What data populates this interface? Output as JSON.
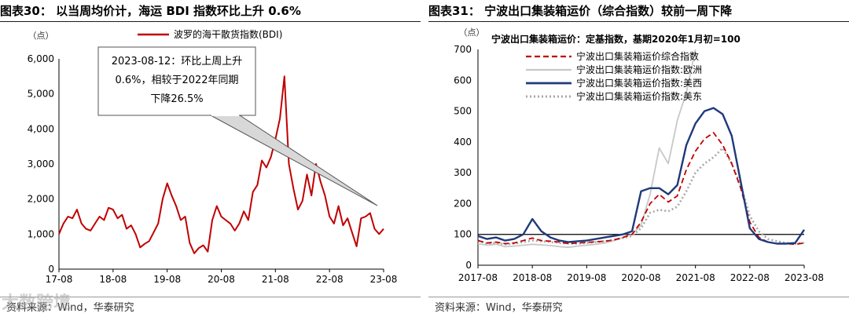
{
  "charts": [
    {
      "figure_label": "图表30：",
      "figure_title": "以当周均价计，海运 BDI 指数环比上升 0.6%",
      "unit": "（点）",
      "source": "资料来源：Wind，华泰研究",
      "annotation": {
        "lines": [
          "2023-08-12：环比上周上升",
          "0.6%，相较于2022年同期",
          "下降26.5%"
        ]
      }
    },
    {
      "figure_label": "图表31：",
      "figure_title": "宁波出口集装箱运价（综合指数）较前一周下降",
      "unit": "（点）",
      "subtitle": "宁波出口集装箱运价：定基指数，基期2020年1月初=100",
      "source": "资料来源：Wind，华泰研究"
    }
  ],
  "watermark": "大数跨境",
  "colors": {
    "bdi": "#c00000",
    "composite": "#c00000",
    "europe": "#c8c8c8",
    "uswest": "#1f3a7a",
    "useast": "#a8a8a8"
  },
  "chart_data": [
    {
      "type": "line",
      "title": "",
      "xlabel": "",
      "ylabel": "（点）",
      "ylim": [
        0,
        6000
      ],
      "yticks": [
        "0",
        "1,000",
        "2,000",
        "3,000",
        "4,000",
        "5,000",
        "6,000"
      ],
      "xticks": [
        "17-08",
        "18-08",
        "19-08",
        "20-08",
        "21-08",
        "22-08",
        "23-08"
      ],
      "legend_position": "top",
      "series": [
        {
          "name": "波罗的海干散货指数(BDI)",
          "x": [
            "2017-08",
            "2017-09",
            "2017-10",
            "2017-11",
            "2017-12",
            "2018-01",
            "2018-02",
            "2018-03",
            "2018-04",
            "2018-05",
            "2018-06",
            "2018-07",
            "2018-08",
            "2018-09",
            "2018-10",
            "2018-11",
            "2018-12",
            "2019-01",
            "2019-02",
            "2019-03",
            "2019-04",
            "2019-05",
            "2019-06",
            "2019-07",
            "2019-08",
            "2019-09",
            "2019-10",
            "2019-11",
            "2019-12",
            "2020-01",
            "2020-02",
            "2020-03",
            "2020-04",
            "2020-05",
            "2020-06",
            "2020-07",
            "2020-08",
            "2020-09",
            "2020-10",
            "2020-11",
            "2020-12",
            "2021-01",
            "2021-02",
            "2021-03",
            "2021-04",
            "2021-05",
            "2021-06",
            "2021-07",
            "2021-08",
            "2021-09",
            "2021-10",
            "2021-11",
            "2021-12",
            "2022-01",
            "2022-02",
            "2022-03",
            "2022-04",
            "2022-05",
            "2022-06",
            "2022-07",
            "2022-08",
            "2022-09",
            "2022-10",
            "2022-11",
            "2022-12",
            "2023-01",
            "2023-02",
            "2023-03",
            "2023-04",
            "2023-05",
            "2023-06",
            "2023-07",
            "2023-08"
          ],
          "values": [
            1000,
            1300,
            1500,
            1450,
            1700,
            1300,
            1150,
            1100,
            1300,
            1500,
            1400,
            1750,
            1700,
            1450,
            1550,
            1150,
            1250,
            1000,
            620,
            720,
            800,
            1050,
            1300,
            2000,
            2450,
            2100,
            1800,
            1400,
            1500,
            750,
            450,
            600,
            680,
            500,
            1400,
            1800,
            1500,
            1400,
            1300,
            1100,
            1300,
            1650,
            1400,
            2200,
            2400,
            3100,
            2900,
            3200,
            3700,
            4300,
            5500,
            3000,
            2300,
            1700,
            1950,
            2700,
            2100,
            3000,
            2500,
            2100,
            1500,
            1300,
            1800,
            1250,
            1450,
            1050,
            650,
            1450,
            1500,
            1600,
            1150,
            1000,
            1150
          ]
        }
      ]
    },
    {
      "type": "line",
      "title": "宁波出口集装箱运价：定基指数，基期2020年1月初=100",
      "xlabel": "",
      "ylabel": "（点）",
      "ylim": [
        0,
        700
      ],
      "yticks": [
        "0",
        "100",
        "200",
        "300",
        "400",
        "500",
        "600",
        "700"
      ],
      "xticks": [
        "2017-08",
        "2018-08",
        "2019-08",
        "2020-08",
        "2021-08",
        "2022-08",
        "2023-08"
      ],
      "legend_position": "top-left",
      "series": [
        {
          "name": "宁波出口集装箱运价综合指数",
          "x": [
            "2017-08",
            "2017-10",
            "2017-12",
            "2018-02",
            "2018-04",
            "2018-06",
            "2018-08",
            "2018-10",
            "2018-12",
            "2019-02",
            "2019-04",
            "2019-06",
            "2019-08",
            "2019-10",
            "2019-12",
            "2020-02",
            "2020-04",
            "2020-06",
            "2020-08",
            "2020-10",
            "2020-12",
            "2021-02",
            "2021-04",
            "2021-06",
            "2021-08",
            "2021-10",
            "2021-12",
            "2022-02",
            "2022-04",
            "2022-06",
            "2022-08",
            "2022-10",
            "2022-12",
            "2023-02",
            "2023-04",
            "2023-06",
            "2023-08"
          ],
          "values": [
            80,
            72,
            75,
            70,
            72,
            80,
            88,
            80,
            78,
            75,
            70,
            72,
            74,
            76,
            78,
            82,
            90,
            100,
            140,
            200,
            230,
            205,
            225,
            310,
            370,
            410,
            430,
            390,
            330,
            250,
            140,
            90,
            75,
            70,
            70,
            68,
            72
          ]
        },
        {
          "name": "宁波出口集装箱运价指数:欧洲",
          "x": [
            "2017-08",
            "2017-10",
            "2017-12",
            "2018-02",
            "2018-04",
            "2018-06",
            "2018-08",
            "2018-10",
            "2018-12",
            "2019-02",
            "2019-04",
            "2019-06",
            "2019-08",
            "2019-10",
            "2019-12",
            "2020-02",
            "2020-04",
            "2020-06",
            "2020-08",
            "2020-10",
            "2020-12",
            "2021-02",
            "2021-04",
            "2021-06",
            "2021-08"
          ],
          "values": [
            70,
            65,
            68,
            60,
            62,
            65,
            68,
            66,
            64,
            60,
            58,
            62,
            65,
            68,
            72,
            80,
            90,
            100,
            130,
            230,
            380,
            330,
            470,
            560,
            700
          ]
        },
        {
          "name": "宁波出口集装箱运价指数:美西",
          "x": [
            "2017-08",
            "2017-10",
            "2017-12",
            "2018-02",
            "2018-04",
            "2018-06",
            "2018-08",
            "2018-10",
            "2018-12",
            "2019-02",
            "2019-04",
            "2019-06",
            "2019-08",
            "2019-10",
            "2019-12",
            "2020-02",
            "2020-04",
            "2020-06",
            "2020-08",
            "2020-10",
            "2020-12",
            "2021-02",
            "2021-04",
            "2021-06",
            "2021-08",
            "2021-10",
            "2021-12",
            "2022-02",
            "2022-04",
            "2022-06",
            "2022-08",
            "2022-10",
            "2022-12",
            "2023-02",
            "2023-04",
            "2023-06",
            "2023-08"
          ],
          "values": [
            95,
            85,
            90,
            80,
            85,
            100,
            150,
            110,
            90,
            80,
            75,
            78,
            80,
            85,
            90,
            95,
            100,
            110,
            240,
            250,
            250,
            230,
            260,
            390,
            460,
            500,
            510,
            490,
            420,
            270,
            120,
            85,
            75,
            70,
            70,
            72,
            115
          ]
        },
        {
          "name": "宁波出口集装箱运价指数:美东",
          "x": [
            "2017-08",
            "2017-10",
            "2017-12",
            "2018-02",
            "2018-04",
            "2018-06",
            "2018-08",
            "2018-10",
            "2018-12",
            "2019-02",
            "2019-04",
            "2019-06",
            "2019-08",
            "2019-10",
            "2019-12",
            "2020-02",
            "2020-04",
            "2020-06",
            "2020-08",
            "2020-10",
            "2020-12",
            "2021-02",
            "2021-04",
            "2021-06",
            "2021-08",
            "2021-10",
            "2021-12",
            "2022-02",
            "2022-04",
            "2022-06",
            "2022-08",
            "2022-10",
            "2022-12",
            "2023-02",
            "2023-04",
            "2023-06",
            "2023-08"
          ],
          "values": [
            80,
            70,
            72,
            68,
            70,
            75,
            80,
            78,
            75,
            72,
            70,
            70,
            72,
            75,
            78,
            82,
            88,
            95,
            120,
            170,
            180,
            175,
            190,
            240,
            300,
            330,
            350,
            380,
            330,
            260,
            160,
            110,
            85,
            78,
            72,
            70,
            72
          ]
        }
      ]
    }
  ]
}
